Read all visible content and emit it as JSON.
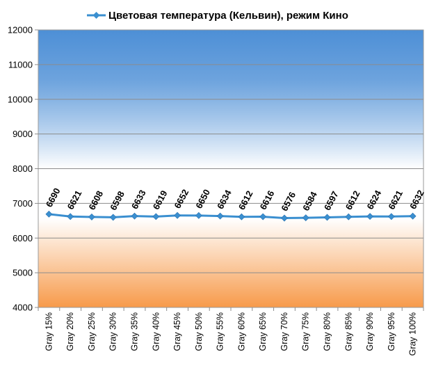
{
  "chart_data": {
    "type": "line",
    "title": "",
    "xlabel": "",
    "ylabel": "",
    "ylim": [
      4000,
      12000
    ],
    "yticks": [
      4000,
      5000,
      6000,
      7000,
      8000,
      9000,
      10000,
      11000,
      12000
    ],
    "grid": true,
    "legend_position": "top",
    "categories": [
      "Gray 15%",
      "Gray 20%",
      "Gray 25%",
      "Gray 30%",
      "Gray 35%",
      "Gray 40%",
      "Gray 45%",
      "Gray 50%",
      "Gray 55%",
      "Gray 60%",
      "Gray 65%",
      "Gray 70%",
      "Gray 75%",
      "Gray 80%",
      "Gray 85%",
      "Gray 90%",
      "Gray 95%",
      "Gray 100%"
    ],
    "series": [
      {
        "name": "Цветовая температура (Кельвин), режим Кино",
        "color": "#3a8fd0",
        "values": [
          6690,
          6621,
          6608,
          6598,
          6633,
          6619,
          6652,
          6650,
          6634,
          6612,
          6616,
          6576,
          6584,
          6597,
          6612,
          6624,
          6621,
          6632
        ]
      }
    ],
    "background_gradient": [
      "#4d8fd6",
      "#ffffff",
      "#f79a4a"
    ]
  }
}
